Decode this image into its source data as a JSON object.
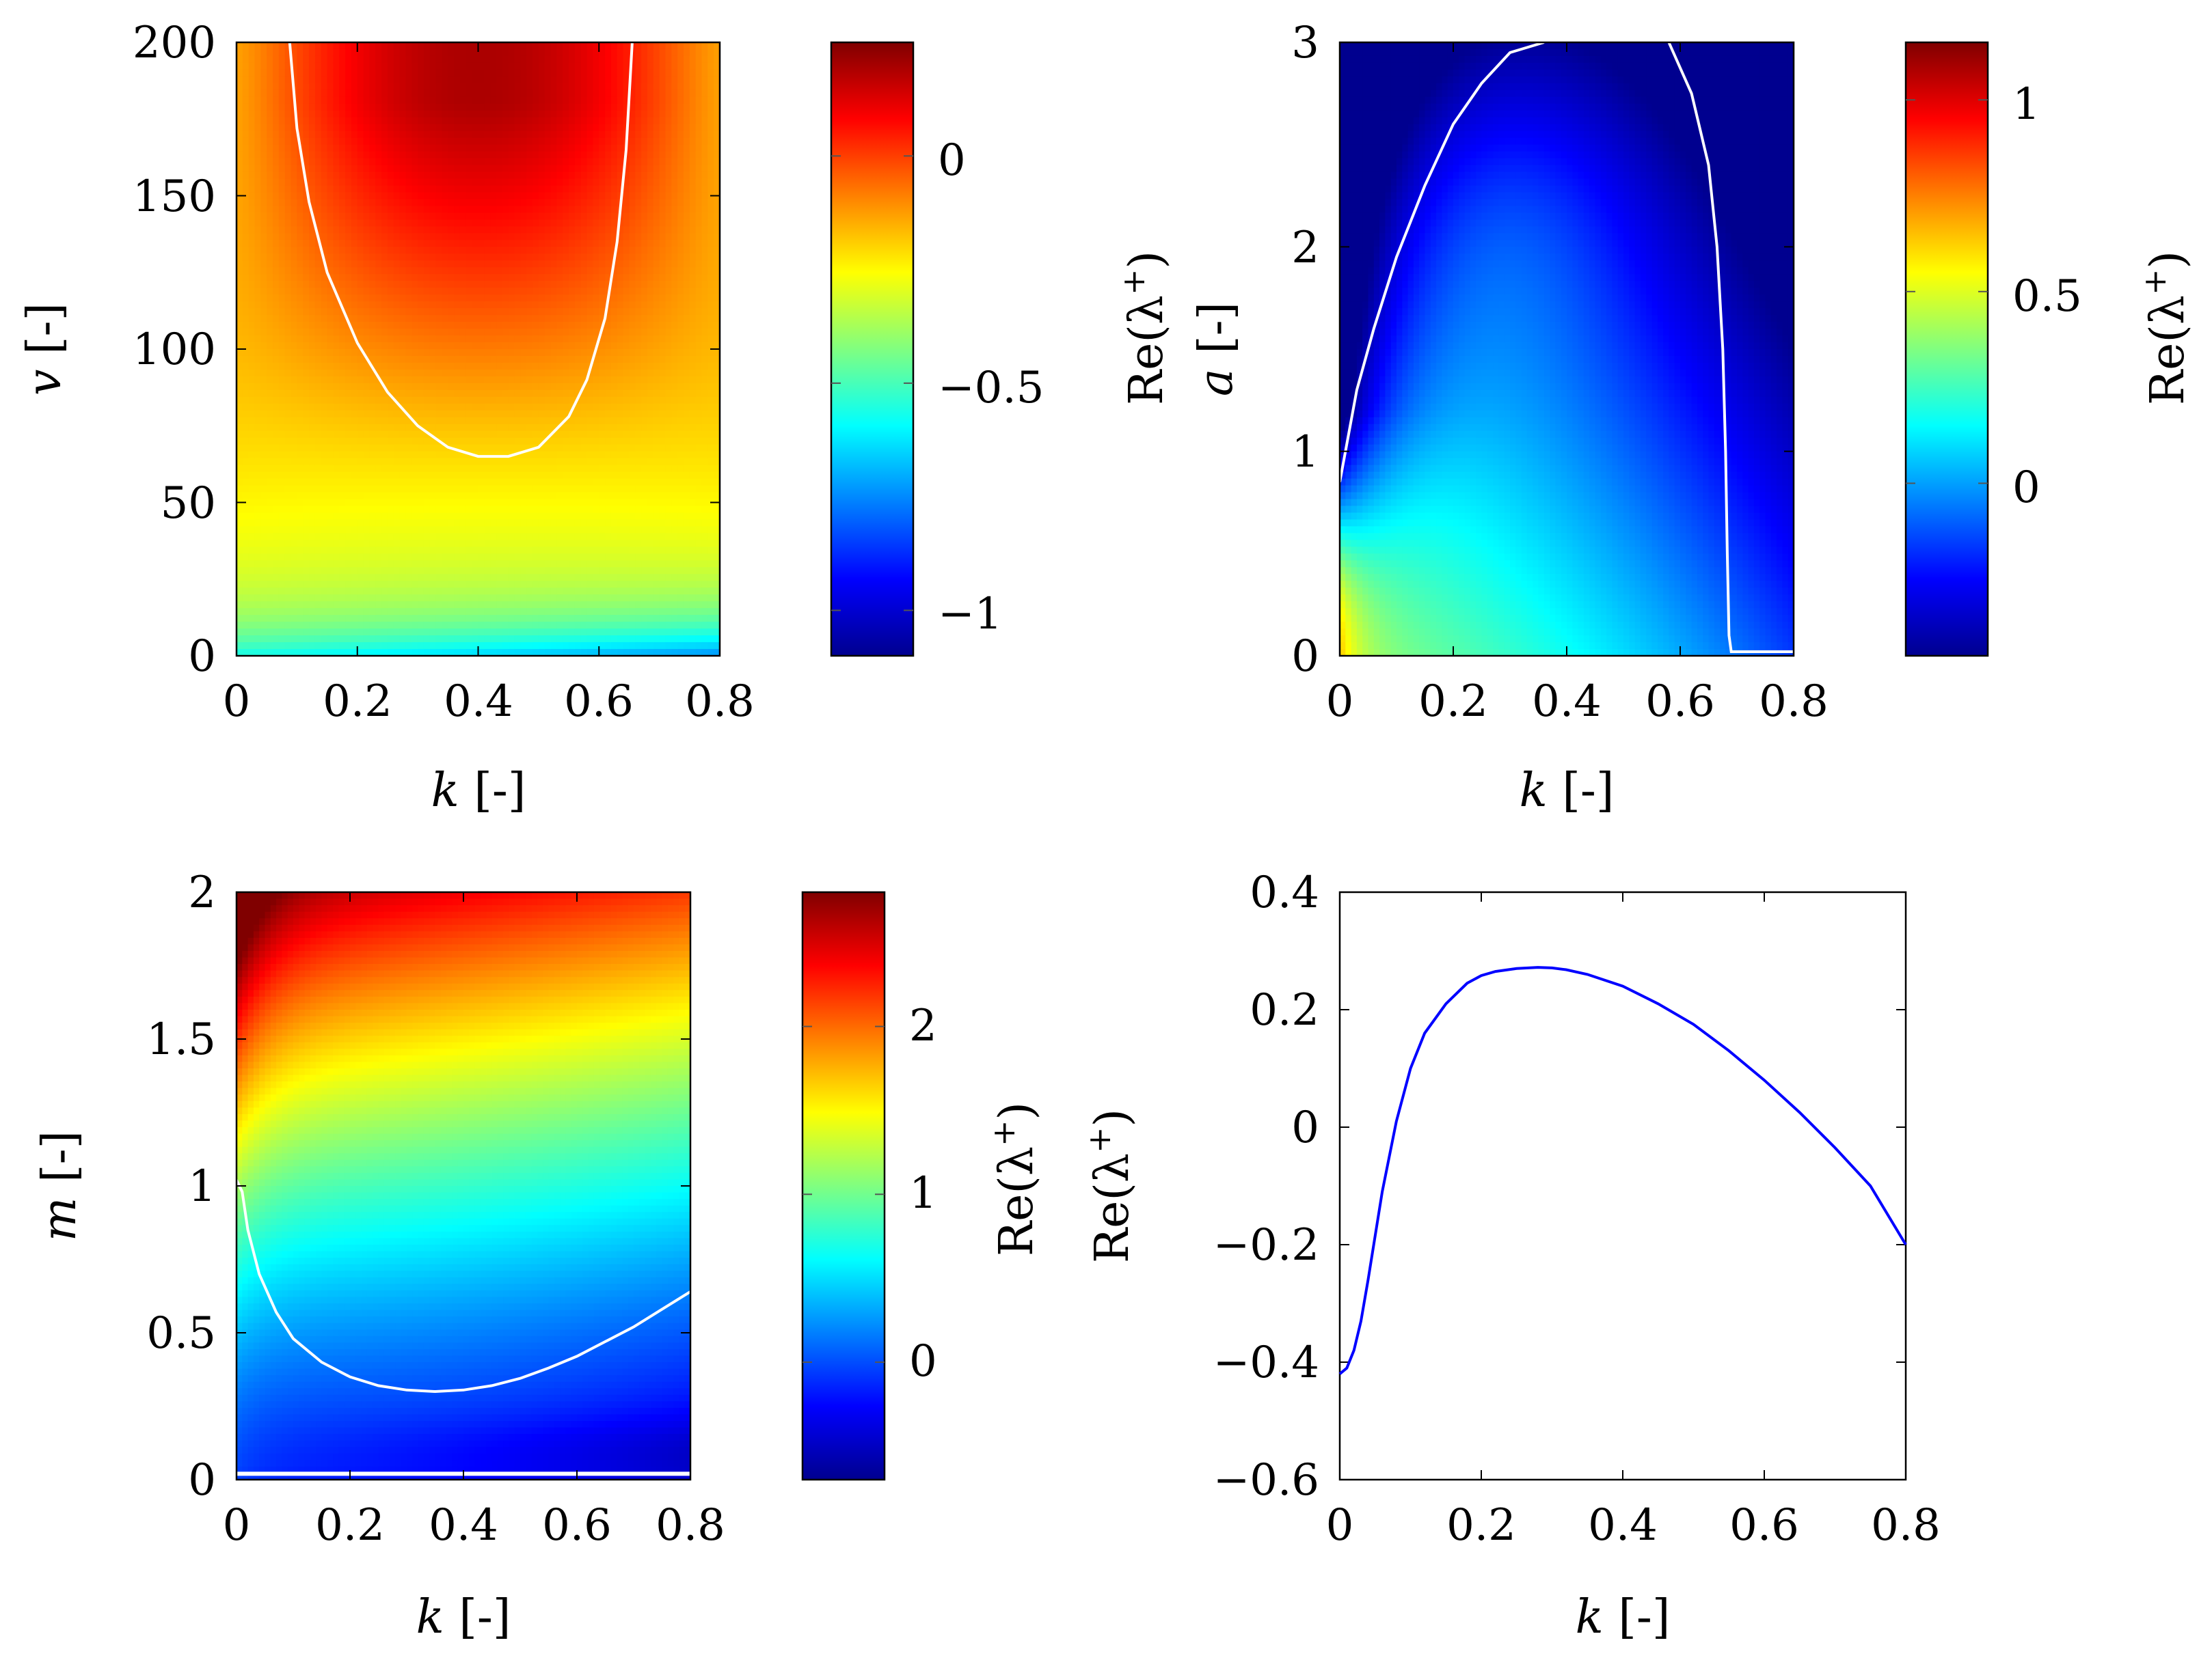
{
  "colormap": [
    "#00008f",
    "#0000ff",
    "#0080ff",
    "#00ffff",
    "#80ff80",
    "#ffff00",
    "#ff8000",
    "#ff0000",
    "#800000"
  ],
  "contour_color": "#ffffff",
  "chart_data": [
    {
      "id": "tl",
      "type": "heatmap",
      "title": "",
      "xlabel_var": "k",
      "xlabel_unit": " [-]",
      "ylabel_var": "v",
      "ylabel_unit": " [-]",
      "xlim": [
        0,
        0.8
      ],
      "ylim": [
        0,
        200
      ],
      "xticks": [
        0,
        0.2,
        0.4,
        0.6,
        0.8
      ],
      "xtick_labels": [
        "0",
        "0.2",
        "0.4",
        "0.6",
        "0.8"
      ],
      "yticks": [
        0,
        50,
        100,
        150,
        200
      ],
      "ytick_labels": [
        "0",
        "50",
        "100",
        "150",
        "200"
      ],
      "colorbar": {
        "range": [
          -1.1,
          0.25
        ],
        "ticks": [
          -1,
          -0.5,
          0
        ],
        "tick_labels": [
          "−1",
          "−0.5",
          "0"
        ],
        "label": "Re(λ+)",
        "label_base": "Re(λ",
        "label_sup": "+",
        "label_close": ")"
      },
      "zero_contour": {
        "x": [
          0.088,
          0.1,
          0.12,
          0.15,
          0.2,
          0.25,
          0.3,
          0.35,
          0.4,
          0.45,
          0.5,
          0.55,
          0.58,
          0.61,
          0.63,
          0.645,
          0.655
        ],
        "y": [
          200,
          172,
          148,
          125,
          102,
          86,
          75,
          68,
          65,
          65,
          68,
          78,
          90,
          110,
          135,
          165,
          200
        ]
      }
    },
    {
      "id": "tr",
      "type": "heatmap",
      "title": "",
      "xlabel_var": "k",
      "xlabel_unit": " [-]",
      "ylabel_var": "a",
      "ylabel_unit": " [-]",
      "xlim": [
        0,
        0.8
      ],
      "ylim": [
        0,
        3
      ],
      "xticks": [
        0,
        0.2,
        0.4,
        0.6,
        0.8
      ],
      "xtick_labels": [
        "0",
        "0.2",
        "0.4",
        "0.6",
        "0.8"
      ],
      "yticks": [
        0,
        1,
        2,
        3
      ],
      "ytick_labels": [
        "0",
        "1",
        "2",
        "3"
      ],
      "colorbar": {
        "range": [
          -0.45,
          1.15
        ],
        "ticks": [
          0,
          0.5,
          1
        ],
        "tick_labels": [
          "0",
          "0.5",
          "1"
        ],
        "label": "Re(λ+)",
        "label_base": "Re(λ",
        "label_sup": "+",
        "label_close": ")"
      },
      "zero_contour": {
        "x": [
          0.0,
          0.01,
          0.03,
          0.06,
          0.1,
          0.15,
          0.2,
          0.25,
          0.3,
          0.36
        ],
        "y": [
          0.85,
          1.0,
          1.3,
          1.6,
          1.95,
          2.3,
          2.6,
          2.8,
          2.95,
          3.0
        ]
      },
      "zero_contour_2": {
        "x": [
          0.58,
          0.62,
          0.65,
          0.665,
          0.675,
          0.68,
          0.683,
          0.686,
          0.69,
          0.71,
          0.75,
          0.8
        ],
        "y": [
          3.0,
          2.75,
          2.4,
          2.0,
          1.5,
          1.0,
          0.5,
          0.1,
          0.02,
          0.02,
          0.02,
          0.02
        ]
      }
    },
    {
      "id": "bl",
      "type": "heatmap",
      "title": "",
      "xlabel_var": "k",
      "xlabel_unit": " [-]",
      "ylabel_var": "m",
      "ylabel_unit": " [-]",
      "xlim": [
        0,
        0.8
      ],
      "ylim": [
        0,
        2
      ],
      "xticks": [
        0,
        0.2,
        0.4,
        0.6,
        0.8
      ],
      "xtick_labels": [
        "0",
        "0.2",
        "0.4",
        "0.6",
        "0.8"
      ],
      "yticks": [
        0,
        0.5,
        1,
        1.5,
        2
      ],
      "ytick_labels": [
        "0",
        "0.5",
        "1",
        "1.5",
        "2"
      ],
      "colorbar": {
        "range": [
          -0.7,
          2.8
        ],
        "ticks": [
          0,
          1,
          2
        ],
        "tick_labels": [
          "0",
          "1",
          "2"
        ],
        "label": "Re(λ+)",
        "label_base": "Re(λ",
        "label_sup": "+",
        "label_close": ")"
      },
      "zero_contour": {
        "x": [
          0.0,
          0.01,
          0.02,
          0.04,
          0.07,
          0.1,
          0.15,
          0.2,
          0.25,
          0.3,
          0.35,
          0.4,
          0.45,
          0.5,
          0.55,
          0.6,
          0.65,
          0.7,
          0.75,
          0.8
        ],
        "y": [
          1.02,
          0.98,
          0.85,
          0.7,
          0.57,
          0.48,
          0.4,
          0.35,
          0.32,
          0.305,
          0.3,
          0.305,
          0.32,
          0.345,
          0.38,
          0.42,
          0.47,
          0.52,
          0.58,
          0.64
        ]
      },
      "zero_contour_2": {
        "x": [
          0.0,
          0.8
        ],
        "y": [
          0.02,
          0.02
        ]
      }
    },
    {
      "id": "br",
      "type": "line",
      "title": "",
      "xlabel_var": "k",
      "xlabel_unit": " [-]",
      "ylabel": "Re(λ+)",
      "ylabel_base": "Re(λ",
      "ylabel_sup": "+",
      "ylabel_close": ")",
      "xlim": [
        0,
        0.8
      ],
      "ylim": [
        -0.6,
        0.4
      ],
      "xticks": [
        0,
        0.2,
        0.4,
        0.6,
        0.8
      ],
      "xtick_labels": [
        "0",
        "0.2",
        "0.4",
        "0.6",
        "0.8"
      ],
      "yticks": [
        -0.6,
        -0.4,
        -0.2,
        0,
        0.2,
        0.4
      ],
      "ytick_labels": [
        "−0.6",
        "−0.4",
        "−0.2",
        "0",
        "0.2",
        "0.4"
      ],
      "series": [
        {
          "name": "Re(λ+)",
          "color": "#0000ff",
          "x": [
            0.0,
            0.01,
            0.02,
            0.03,
            0.04,
            0.06,
            0.08,
            0.1,
            0.12,
            0.15,
            0.18,
            0.2,
            0.22,
            0.25,
            0.28,
            0.3,
            0.32,
            0.35,
            0.4,
            0.45,
            0.5,
            0.55,
            0.6,
            0.65,
            0.7,
            0.75,
            0.8
          ],
          "y": [
            -0.42,
            -0.41,
            -0.38,
            -0.33,
            -0.26,
            -0.11,
            0.01,
            0.1,
            0.16,
            0.21,
            0.245,
            0.258,
            0.265,
            0.27,
            0.272,
            0.271,
            0.268,
            0.26,
            0.24,
            0.21,
            0.175,
            0.13,
            0.08,
            0.025,
            -0.035,
            -0.1,
            -0.2
          ]
        }
      ]
    }
  ]
}
